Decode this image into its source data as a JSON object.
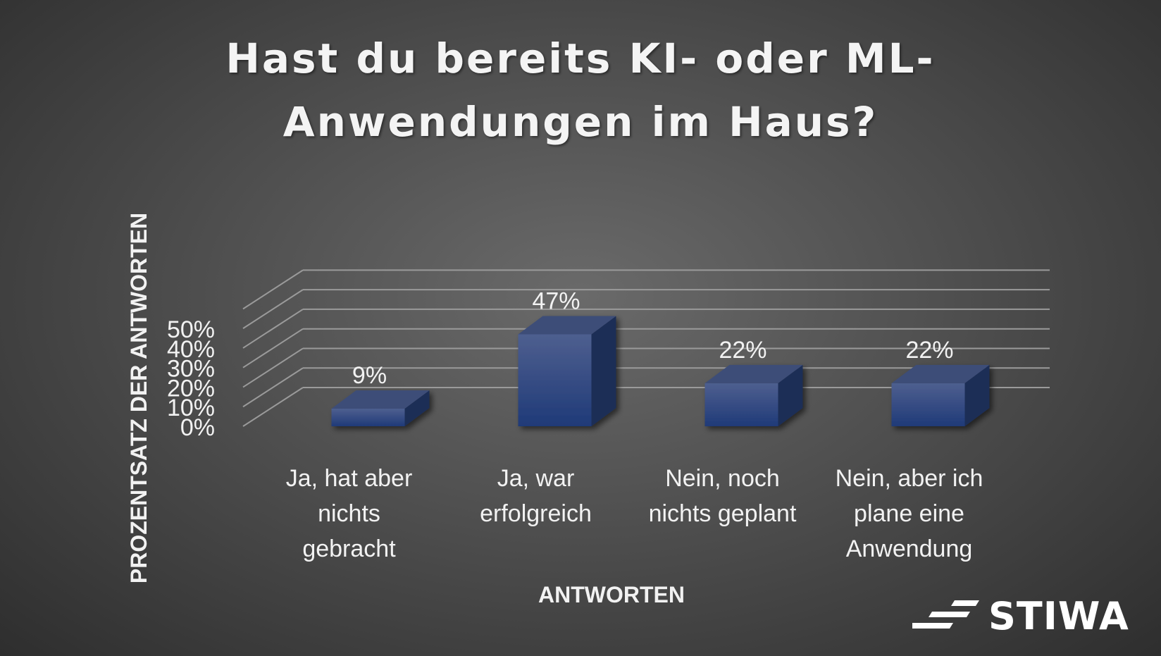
{
  "chart_data": {
    "type": "bar",
    "style": "3d-column",
    "title_lines": [
      "Hast du bereits KI- oder ML-",
      "Anwendungen im Haus?"
    ],
    "categories": [
      [
        "Ja, hat aber",
        "nichts",
        "gebracht"
      ],
      [
        "Ja, war",
        "erfolgreich"
      ],
      [
        "Nein, noch",
        "nichts geplant"
      ],
      [
        "Nein, aber ich",
        "plane eine",
        "Anwendung"
      ]
    ],
    "values": [
      9,
      47,
      22,
      22
    ],
    "data_labels": [
      "9%",
      "47%",
      "22%",
      "22%"
    ],
    "xlabel": "ANTWORTEN",
    "ylabel": "PROZENTSATZ DER ANTWORTEN",
    "ylim": [
      0,
      60
    ],
    "yticks": [
      0,
      10,
      20,
      30,
      40,
      50
    ],
    "ytick_labels": [
      "0%",
      "10%",
      "20%",
      "30%",
      "40%",
      "50%"
    ],
    "grid": true,
    "legend": "none",
    "colors": {
      "bar_front_top": "#4e5f8f",
      "bar_front_bottom": "#1f3a78",
      "bar_top": "#3d4d78",
      "bar_side": "#1c2d57",
      "gridline": "#9a9a9a",
      "text": "#f2f2f2"
    }
  },
  "logo": {
    "text": "STIWA"
  }
}
